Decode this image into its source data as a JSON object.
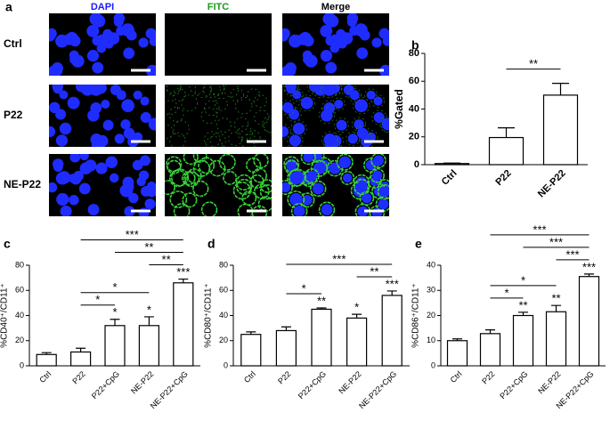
{
  "image_panel": {
    "label": "a",
    "columns": [
      "DAPI",
      "FITC",
      "Merge"
    ],
    "rows": [
      "Ctrl",
      "P22",
      "NE-P22"
    ]
  },
  "chart_data": [
    {
      "type": "bar",
      "panel_label": "b",
      "ylabel": "%Gated",
      "categories": [
        "Ctrl",
        "P22",
        "NE-P22"
      ],
      "values": [
        0.8,
        19.5,
        50
      ],
      "errors": [
        0.3,
        7,
        8.5
      ],
      "color": "#ffffff",
      "ylim": [
        0,
        80
      ],
      "yticks": [
        0,
        20,
        40,
        60,
        80
      ],
      "bar_annotations": [
        null,
        null,
        null
      ],
      "brackets": [
        {
          "from": "P22",
          "to": "NE-P22",
          "label": "**"
        }
      ]
    },
    {
      "type": "bar",
      "panel_label": "c",
      "ylabel": "%CD40⁺/CD11⁺",
      "categories": [
        "Ctrl",
        "P22",
        "P22+CpG",
        "NE-P22",
        "NE-P22+CpG"
      ],
      "values": [
        9,
        11,
        32,
        32,
        66
      ],
      "errors": [
        1.5,
        3,
        5,
        7,
        3
      ],
      "color": "#ffffff",
      "ylim": [
        0,
        80
      ],
      "yticks": [
        0,
        20,
        40,
        60,
        80
      ],
      "bar_annotations": [
        null,
        null,
        "*",
        "*",
        "***"
      ],
      "brackets": [
        {
          "from": "P22",
          "to": "P22+CpG",
          "label": "*"
        },
        {
          "from": "P22",
          "to": "NE-P22",
          "label": "*"
        },
        {
          "from": "NE-P22",
          "to": "NE-P22+CpG",
          "label": "**"
        },
        {
          "from": "P22+CpG",
          "to": "NE-P22+CpG",
          "label": "**"
        },
        {
          "from": "P22",
          "to": "NE-P22+CpG",
          "label": "***"
        }
      ]
    },
    {
      "type": "bar",
      "panel_label": "d",
      "ylabel": "%CD80⁺/CD11⁺",
      "categories": [
        "Ctrl",
        "P22",
        "P22+CpG",
        "NE-P22",
        "NE-P22+CpG"
      ],
      "values": [
        25,
        28,
        45,
        38,
        56
      ],
      "errors": [
        2,
        3,
        1,
        3,
        3.5
      ],
      "color": "#ffffff",
      "ylim": [
        0,
        80
      ],
      "yticks": [
        0,
        20,
        40,
        60,
        80
      ],
      "bar_annotations": [
        null,
        null,
        "**",
        "*",
        "***"
      ],
      "brackets": [
        {
          "from": "P22",
          "to": "P22+CpG",
          "label": "*"
        },
        {
          "from": "NE-P22",
          "to": "NE-P22+CpG",
          "label": "**"
        },
        {
          "from": "P22",
          "to": "NE-P22+CpG",
          "label": "***"
        }
      ]
    },
    {
      "type": "bar",
      "panel_label": "e",
      "ylabel": "%CD86⁺/CD11⁺",
      "categories": [
        "Ctrl",
        "P22",
        "P22+CpG",
        "NE-P22",
        "NE-P22+CpG"
      ],
      "values": [
        10,
        12.8,
        20,
        21.5,
        35.5
      ],
      "errors": [
        0.7,
        1.5,
        1.3,
        2.5,
        1
      ],
      "color": "#ffffff",
      "ylim": [
        0,
        40
      ],
      "yticks": [
        0,
        10,
        20,
        30,
        40
      ],
      "bar_annotations": [
        null,
        null,
        "**",
        "**",
        "***"
      ],
      "brackets": [
        {
          "from": "P22",
          "to": "P22+CpG",
          "label": "*"
        },
        {
          "from": "P22",
          "to": "NE-P22",
          "label": "*"
        },
        {
          "from": "NE-P22",
          "to": "NE-P22+CpG",
          "label": "***"
        },
        {
          "from": "P22+CpG",
          "to": "NE-P22+CpG",
          "label": "***"
        },
        {
          "from": "P22",
          "to": "NE-P22+CpG",
          "label": "***"
        }
      ]
    }
  ]
}
